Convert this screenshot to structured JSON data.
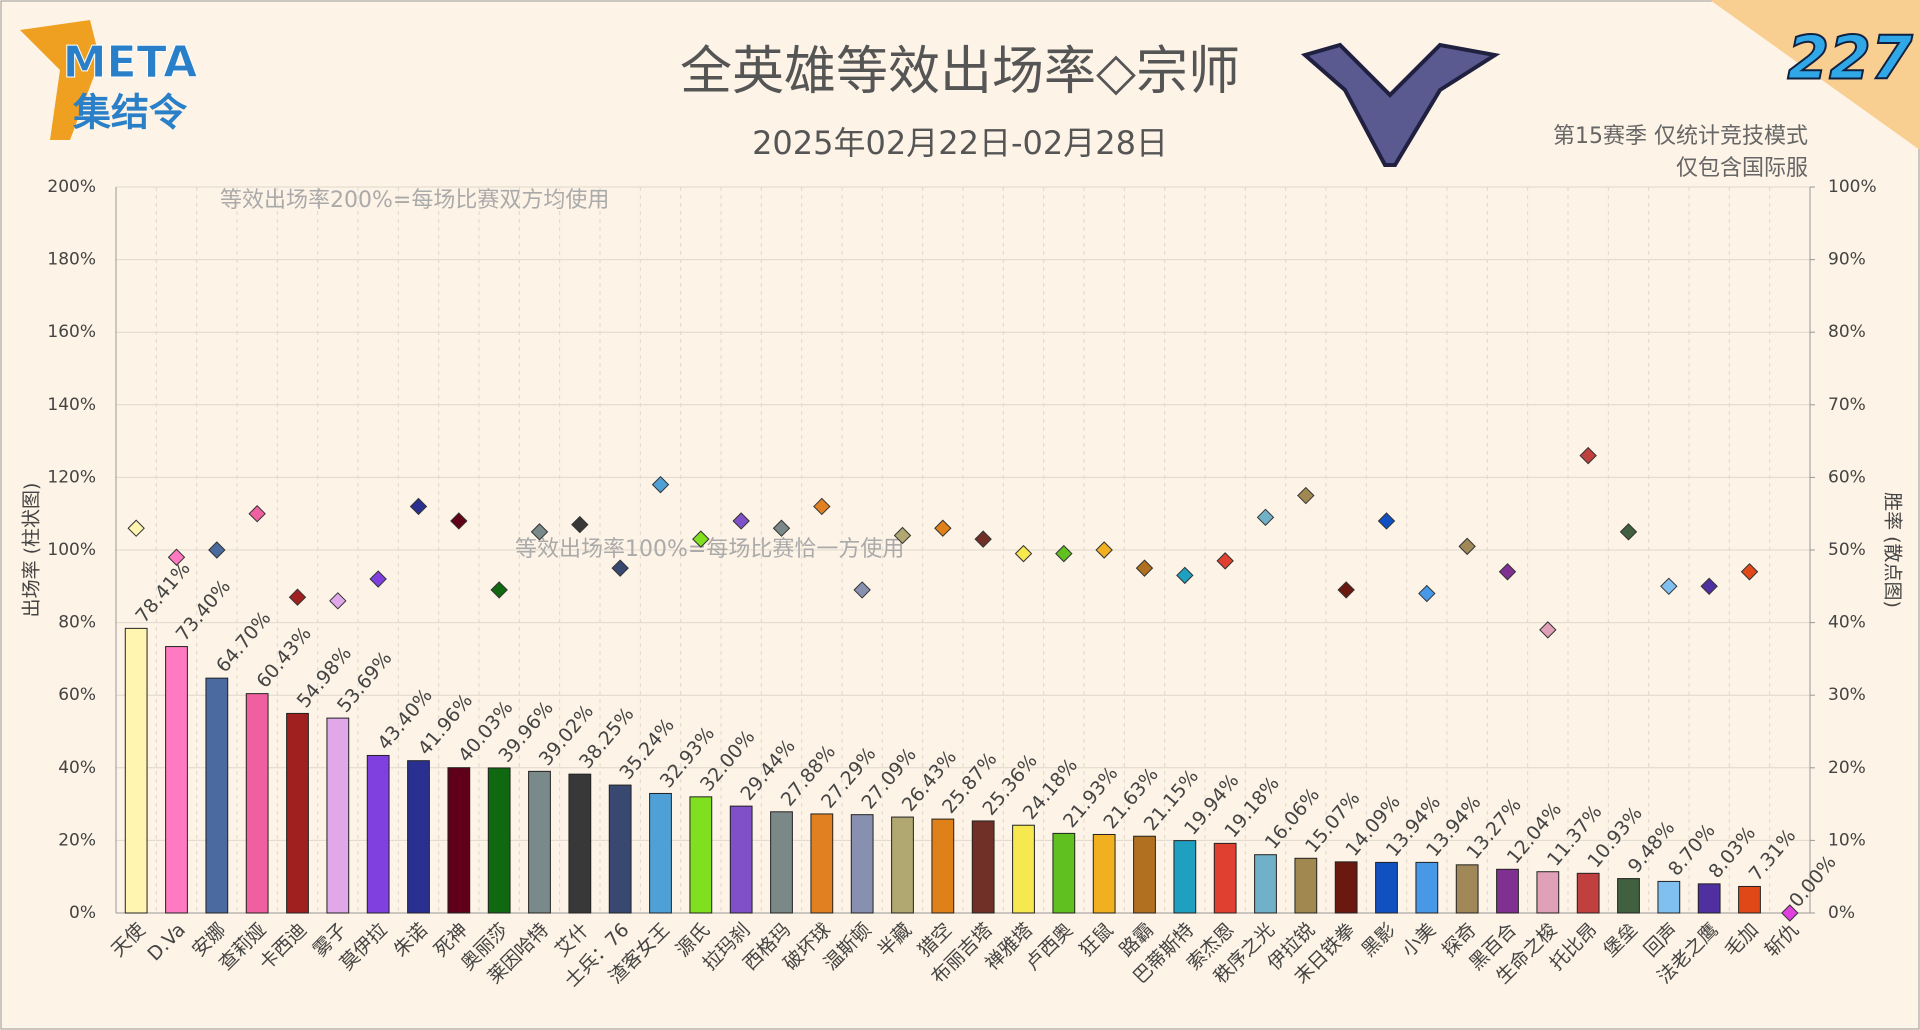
{
  "logo": {
    "name": "META",
    "subtitle": "集结令",
    "issue": "227"
  },
  "chart_data": {
    "type": "bar_scatter",
    "title": "全英雄等效出场率◇宗师",
    "subtitle": "2025年02月22日-02月28日",
    "notes": [
      "第15赛季 仅统计竞技模式",
      "仅包含国际服"
    ],
    "annotations": [
      {
        "text": "等效出场率200%=每场比赛双方均使用",
        "value": 200
      },
      {
        "text": "等效出场率100%=每场比赛恰一方使用",
        "value": 100
      }
    ],
    "ylabel": "出场率 (柱状图)",
    "y2label": "胜率 (散点图)",
    "categories": [
      "天使",
      "D.Va",
      "安娜",
      "查莉娅",
      "卡西迪",
      "雾子",
      "莫伊拉",
      "朱诺",
      "死神",
      "奥丽莎",
      "莱因哈特",
      "艾什",
      "士兵：76",
      "渣客女王",
      "源氏",
      "拉玛刹",
      "西格玛",
      "破坏球",
      "温斯顿",
      "半藏",
      "猎空",
      "布丽吉塔",
      "禅雅塔",
      "卢西奥",
      "狂鼠",
      "路霸",
      "巴蒂斯特",
      "索杰恩",
      "秩序之光",
      "伊拉锐",
      "末日铁拳",
      "黑影",
      "小美",
      "探奇",
      "黑百合",
      "生命之梭",
      "托比昂",
      "堡垒",
      "回声",
      "法老之鹰",
      "毛加",
      "斩仇"
    ],
    "colors": [
      "#fff5b0",
      "#ff7ac0",
      "#4a6aa0",
      "#f060a0",
      "#a02020",
      "#e0a8e8",
      "#8040e0",
      "#2a3090",
      "#600018",
      "#106810",
      "#7a8a8a",
      "#383838",
      "#384870",
      "#50a0d8",
      "#80e020",
      "#8050c8",
      "#7a8888",
      "#e08020",
      "#8890b0",
      "#b0a870",
      "#e08018",
      "#703028",
      "#f8e850",
      "#60c020",
      "#f0b020",
      "#b07020",
      "#20a0c0",
      "#e04030",
      "#70b0c8",
      "#a08850",
      "#6a1810",
      "#1050c0",
      "#4898e8",
      "#a08858",
      "#803090",
      "#e0a0b8",
      "#c04040",
      "#406040",
      "#80c0f0",
      "#5030a0",
      "#e04818",
      "#e040e0"
    ],
    "series": [
      {
        "name": "出场率",
        "values": [
          78.41,
          73.4,
          64.7,
          60.43,
          54.98,
          53.69,
          43.4,
          41.96,
          40.03,
          39.96,
          39.02,
          38.25,
          35.24,
          32.93,
          32.0,
          29.44,
          27.88,
          27.29,
          27.09,
          26.43,
          25.87,
          25.36,
          24.18,
          21.93,
          21.63,
          21.15,
          19.94,
          19.18,
          16.06,
          15.07,
          14.09,
          13.94,
          13.94,
          13.27,
          12.04,
          11.37,
          10.93,
          9.48,
          8.7,
          8.03,
          7.31,
          0.0
        ],
        "value_labels": [
          "78.41%",
          "73.40%",
          "64.70%",
          "60.43%",
          "54.98%",
          "53.69%",
          "43.40%",
          "41.96%",
          "40.03%",
          "39.96%",
          "39.02%",
          "38.25%",
          "35.24%",
          "32.93%",
          "32.00%",
          "29.44%",
          "27.88%",
          "27.29%",
          "27.09%",
          "26.43%",
          "25.87%",
          "25.36%",
          "24.18%",
          "21.93%",
          "21.63%",
          "21.15%",
          "19.94%",
          "19.18%",
          "16.06%",
          "15.07%",
          "14.09%",
          "13.94%",
          "13.94%",
          "13.27%",
          "12.04%",
          "11.37%",
          "10.93%",
          "9.48%",
          "8.70%",
          "8.03%",
          "7.31%",
          "0.00%"
        ]
      },
      {
        "name": "胜率",
        "axis": "y2",
        "values": [
          53,
          49,
          50,
          55,
          43.5,
          43,
          46,
          56,
          54,
          44.5,
          52.5,
          53.5,
          47.5,
          59,
          51.5,
          54,
          53,
          56,
          44.5,
          52,
          53,
          51.5,
          49.5,
          49.5,
          50,
          47.5,
          46.5,
          48.5,
          54.5,
          57.5,
          44.5,
          54,
          44,
          50.5,
          47,
          39,
          63,
          52.5,
          45,
          45,
          47,
          0
        ]
      }
    ],
    "ylim": [
      0,
      200
    ],
    "yticks": [
      {
        "value": 0,
        "label": "0%"
      },
      {
        "value": 20,
        "label": "20%"
      },
      {
        "value": 40,
        "label": "40%"
      },
      {
        "value": 60,
        "label": "60%"
      },
      {
        "value": 80,
        "label": "80%"
      },
      {
        "value": 100,
        "label": "100%"
      },
      {
        "value": 120,
        "label": "120%"
      },
      {
        "value": 140,
        "label": "140%"
      },
      {
        "value": 160,
        "label": "160%"
      },
      {
        "value": 180,
        "label": "180%"
      },
      {
        "value": 200,
        "label": "200%"
      }
    ],
    "y2lim": [
      0,
      100
    ],
    "y2ticks": [
      {
        "value": 0,
        "label": "0%"
      },
      {
        "value": 10,
        "label": "10%"
      },
      {
        "value": 20,
        "label": "20%"
      },
      {
        "value": 30,
        "label": "30%"
      },
      {
        "value": 40,
        "label": "40%"
      },
      {
        "value": 50,
        "label": "50%"
      },
      {
        "value": 60,
        "label": "60%"
      },
      {
        "value": 70,
        "label": "70%"
      },
      {
        "value": 80,
        "label": "80%"
      },
      {
        "value": 90,
        "label": "90%"
      },
      {
        "value": 100,
        "label": "100%"
      }
    ],
    "grid": true
  }
}
